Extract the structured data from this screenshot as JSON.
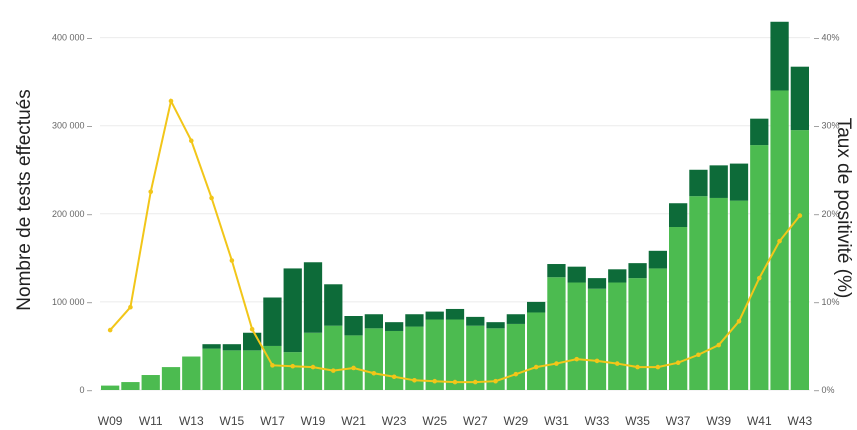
{
  "chart_data": {
    "type": "bar",
    "title": "",
    "ylabel": "Nombre de tests effectués",
    "y2label": "Taux de positivité (%)",
    "ylim": [
      0,
      420000
    ],
    "y2lim": [
      0,
      42
    ],
    "yticks": [
      "0",
      "100 000",
      "200 000",
      "300 000",
      "400 000"
    ],
    "y2ticks": [
      "0%",
      "10%",
      "20%",
      "30%",
      "40%"
    ],
    "grid": true,
    "stacked": true,
    "categories": [
      "W09",
      "W10",
      "W11",
      "W12",
      "W13",
      "W14",
      "W15",
      "W16",
      "W17",
      "W18",
      "W19",
      "W20",
      "W21",
      "W22",
      "W23",
      "W24",
      "W25",
      "W26",
      "W27",
      "W28",
      "W29",
      "W30",
      "W31",
      "W32",
      "W33",
      "W34",
      "W35",
      "W36",
      "W37",
      "W38",
      "W39",
      "W40",
      "W41",
      "W42",
      "W43"
    ],
    "x_tick_labels": [
      "W09",
      "W11",
      "W13",
      "W15",
      "W17",
      "W19",
      "W21",
      "W23",
      "W25",
      "W27",
      "W29",
      "W31",
      "W33",
      "W35",
      "W37",
      "W39",
      "W41",
      "W43"
    ],
    "series": [
      {
        "color": "#4cbb50",
        "values": [
          5000,
          9000,
          17000,
          26000,
          38000,
          47000,
          45000,
          45000,
          50000,
          43000,
          65000,
          73000,
          62000,
          70000,
          67000,
          72000,
          80000,
          80000,
          73000,
          70000,
          75000,
          88000,
          128000,
          122000,
          115000,
          122000,
          127000,
          138000,
          185000,
          220000,
          218000,
          215000,
          278000,
          340000,
          295000
        ]
      },
      {
        "color": "#0d6b39",
        "values": [
          0,
          0,
          0,
          0,
          0,
          5000,
          7000,
          20000,
          55000,
          95000,
          80000,
          47000,
          22000,
          16000,
          10000,
          14000,
          9000,
          12000,
          10000,
          7000,
          11000,
          12000,
          15000,
          18000,
          12000,
          15000,
          17000,
          20000,
          27000,
          30000,
          37000,
          42000,
          30000,
          78000,
          72000
        ]
      }
    ],
    "line": {
      "color": "#f2c619",
      "axis": "right",
      "values": [
        6.8,
        9.4,
        22.5,
        32.8,
        28.3,
        21.8,
        14.7,
        6.9,
        2.8,
        2.7,
        2.6,
        2.2,
        2.5,
        1.9,
        1.5,
        1.1,
        1.0,
        0.9,
        0.9,
        1.0,
        1.8,
        2.6,
        3.0,
        3.5,
        3.3,
        3.0,
        2.6,
        2.6,
        3.1,
        4.0,
        5.1,
        7.8,
        12.7,
        16.9,
        19.8
      ]
    }
  }
}
